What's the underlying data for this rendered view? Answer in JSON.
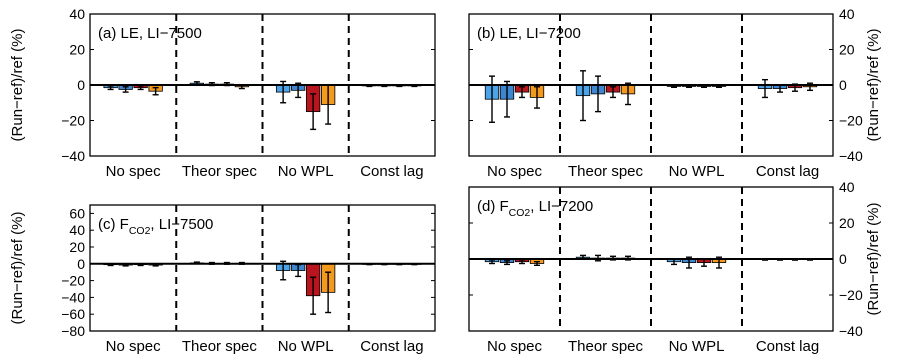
{
  "colors": {
    "light_blue": "#4da3e8",
    "blue": "#3f86d0",
    "red": "#b8151f",
    "orange": "#f39a1e",
    "edge": "#000000"
  },
  "chart_data": [
    {
      "type": "bar",
      "title": "(a) LE, LI−7500",
      "title_parts": [
        "(a) LE, LI−7500"
      ],
      "ylabel": "(Run−ref)/ref (%)",
      "yaxis_side": "left",
      "ylim": [
        -40,
        40
      ],
      "yticks": [
        -40,
        -20,
        0,
        20,
        40
      ],
      "categories": [
        "No spec",
        "Theor spec",
        "No WPL",
        "Const lag"
      ],
      "bar_colors": [
        "light_blue",
        "blue",
        "red",
        "orange"
      ],
      "values": [
        [
          -1.5,
          -2.5,
          -1.5,
          -3.5
        ],
        [
          1,
          0.5,
          0.5,
          -1
        ],
        [
          -4,
          -3,
          -15,
          -11
        ],
        [
          -0.5,
          -0.5,
          -0.5,
          -0.5
        ]
      ],
      "errors": [
        [
          1,
          1.5,
          1,
          2
        ],
        [
          0.8,
          0.8,
          0.8,
          1
        ],
        [
          6,
          4,
          10,
          11
        ],
        [
          0.3,
          0.3,
          0.3,
          0.3
        ]
      ],
      "grid": false,
      "separators": "dashed"
    },
    {
      "type": "bar",
      "title": "(b) LE, LI−7200",
      "title_parts": [
        "(b) LE, LI−7200"
      ],
      "ylabel": "(Run−ref)/ref (%)",
      "yaxis_side": "right",
      "ylim": [
        -40,
        40
      ],
      "yticks": [
        -40,
        -20,
        0,
        20,
        40
      ],
      "categories": [
        "No spec",
        "Theor spec",
        "No WPL",
        "Const lag"
      ],
      "bar_colors": [
        "light_blue",
        "blue",
        "red",
        "orange"
      ],
      "values": [
        [
          -8,
          -8,
          -4,
          -7
        ],
        [
          -6,
          -5,
          -4,
          -5
        ],
        [
          -0.8,
          -0.8,
          -0.8,
          -0.8
        ],
        [
          -2,
          -2,
          -1.5,
          -1
        ]
      ],
      "errors": [
        [
          13,
          10,
          3,
          6
        ],
        [
          14,
          10,
          3,
          6
        ],
        [
          0.5,
          0.5,
          0.5,
          0.5
        ],
        [
          5,
          2,
          2,
          2
        ]
      ],
      "grid": false,
      "separators": "dashed"
    },
    {
      "type": "bar",
      "title": "(c) FCO2, LI−7500",
      "title_parts": [
        "(c) F",
        "CO2",
        ", LI−7500"
      ],
      "ylabel": "(Run−ref)/ref (%)",
      "yaxis_side": "left",
      "ylim": [
        -80,
        70
      ],
      "yticks": [
        -80,
        -60,
        -40,
        -20,
        0,
        20,
        40,
        60
      ],
      "categories": [
        "No spec",
        "Theor spec",
        "No WPL",
        "Const lag"
      ],
      "bar_colors": [
        "light_blue",
        "blue",
        "red",
        "orange"
      ],
      "values": [
        [
          -1,
          -1.5,
          -1,
          -1.5
        ],
        [
          1,
          0.5,
          0.5,
          0.5
        ],
        [
          -8,
          -8,
          -38,
          -34
        ],
        [
          -0.5,
          -0.5,
          -0.5,
          -0.5
        ]
      ],
      "errors": [
        [
          1,
          1,
          1,
          1
        ],
        [
          1,
          1,
          1,
          1
        ],
        [
          11,
          7,
          22,
          24
        ],
        [
          0.5,
          0.5,
          0.5,
          0.5
        ]
      ],
      "grid": false,
      "separators": "dashed"
    },
    {
      "type": "bar",
      "title": "(d) FCO2, LI−7200",
      "title_parts": [
        "(d) F",
        "CO2",
        ", LI−7200"
      ],
      "ylabel": "(Run−ref)/ref (%)",
      "yaxis_side": "right",
      "ylim": [
        -40,
        40
      ],
      "yticks": [
        -40,
        -20,
        0,
        20,
        40
      ],
      "categories": [
        "No spec",
        "Theor spec",
        "No WPL",
        "Const lag"
      ],
      "bar_colors": [
        "light_blue",
        "blue",
        "red",
        "orange"
      ],
      "values": [
        [
          -1.5,
          -2,
          -1.5,
          -2.5
        ],
        [
          1,
          0.5,
          0.5,
          0.5
        ],
        [
          -1.5,
          -2,
          -2,
          -2
        ],
        [
          -0.3,
          -0.3,
          -0.3,
          -0.3
        ]
      ],
      "errors": [
        [
          1,
          1,
          1,
          1
        ],
        [
          1,
          1.5,
          1,
          1
        ],
        [
          1.5,
          3,
          2,
          3
        ],
        [
          0.3,
          0.3,
          0.3,
          0.3
        ]
      ],
      "grid": false,
      "separators": "dashed"
    }
  ]
}
